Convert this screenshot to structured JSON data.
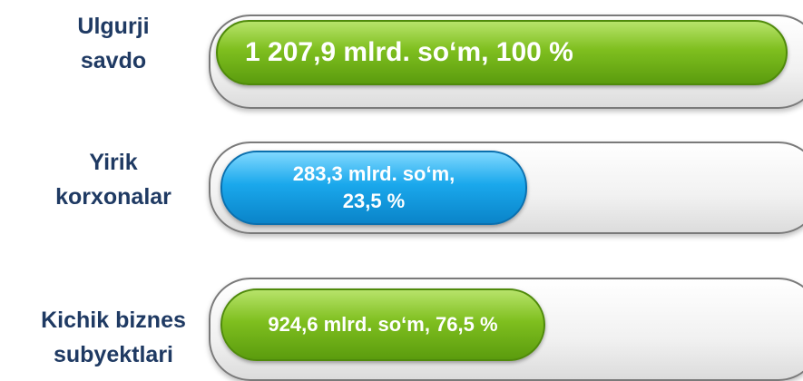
{
  "rows": [
    {
      "label": [
        "Ulgurji",
        "savdo"
      ],
      "bar_text": [
        "1 207,9  mlrd. so‘m, 100 %"
      ]
    },
    {
      "label": [
        "Yirik",
        "korxonalar"
      ],
      "bar_text": [
        "283,3 mlrd. so‘m,",
        "23,5 %"
      ]
    },
    {
      "label": [
        "Kichik biznes",
        "subyektlari"
      ],
      "bar_text": [
        "924,6 mlrd. so‘m, 76,5  %"
      ]
    }
  ]
}
